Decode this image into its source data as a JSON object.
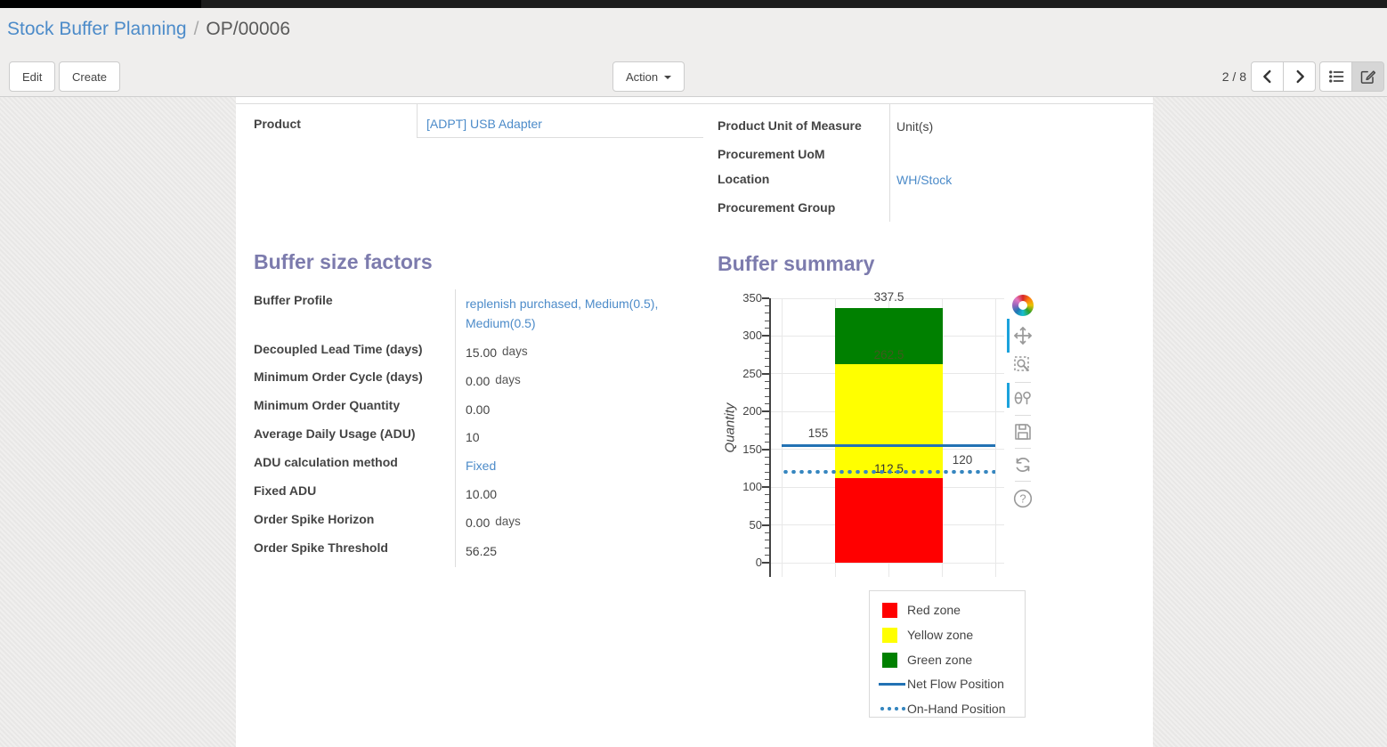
{
  "colors": {
    "accent_link": "#4c8bc9",
    "heading": "#7c7bad",
    "red_zone": "#ff0000",
    "yellow_zone": "#ffff00",
    "green_zone": "#008000",
    "net_flow_line": "#2272b4",
    "on_hand_line": "#3787c0"
  },
  "breadcrumb": {
    "parent": "Stock Buffer Planning",
    "separator": "/",
    "current": "OP/00006"
  },
  "control_panel": {
    "edit_label": "Edit",
    "create_label": "Create",
    "action_label": "Action",
    "pager_text": "2 / 8"
  },
  "form": {
    "product": {
      "label": "Product",
      "value": "[ADPT] USB Adapter"
    },
    "details": {
      "rows": [
        {
          "label": "Product Unit of Measure",
          "value": "Unit(s)"
        },
        {
          "label": "Procurement UoM",
          "value": ""
        },
        {
          "label": "Location",
          "value": "WH/Stock"
        },
        {
          "label": "Procurement Group",
          "value": ""
        }
      ]
    },
    "buffer_factors": {
      "title": "Buffer size factors",
      "rows": [
        {
          "label": "Buffer Profile",
          "value": "replenish purchased, Medium(0.5), Medium(0.5)",
          "suffix": ""
        },
        {
          "label": "Decoupled Lead Time (days)",
          "value": "15.00",
          "suffix": "days"
        },
        {
          "label": "Minimum Order Cycle (days)",
          "value": "0.00",
          "suffix": "days"
        },
        {
          "label": "Minimum Order Quantity",
          "value": "0.00",
          "suffix": ""
        },
        {
          "label": "Average Daily Usage (ADU)",
          "value": "10",
          "suffix": ""
        },
        {
          "label": "ADU calculation method",
          "value": "Fixed",
          "suffix": ""
        },
        {
          "label": "Fixed ADU",
          "value": "10.00",
          "suffix": ""
        },
        {
          "label": "Order Spike Horizon",
          "value": "0.00",
          "suffix": "days"
        },
        {
          "label": "Order Spike Threshold",
          "value": "56.25",
          "suffix": ""
        }
      ]
    },
    "buffer_summary": {
      "title": "Buffer summary"
    }
  },
  "chart_data": {
    "type": "bar",
    "stacked": true,
    "categories": [
      ""
    ],
    "series": [
      {
        "name": "Red zone",
        "color": "#ff0000",
        "values": [
          112.5
        ]
      },
      {
        "name": "Yellow zone",
        "color": "#ffff00",
        "values": [
          150
        ]
      },
      {
        "name": "Green zone",
        "color": "#008000",
        "values": [
          75
        ]
      }
    ],
    "zone_boundaries": [
      112.5,
      262.5,
      337.5
    ],
    "lines": [
      {
        "name": "Net Flow Position",
        "value": 155,
        "style": "solid",
        "color": "#2272b4",
        "label_side": "left"
      },
      {
        "name": "On-Hand Position",
        "value": 120,
        "style": "dotted",
        "color": "#3787c0",
        "label_side": "right"
      }
    ],
    "title": "",
    "xlabel": "",
    "ylabel": "Quantity",
    "ylim": [
      0,
      350
    ],
    "ytick_step": 50,
    "ytick_minor_step": 10,
    "grid": true,
    "legend_position": "bottom-right"
  },
  "modebar_icons": [
    "plotly-logo",
    "pan",
    "box-zoom",
    "compare-hover",
    "save",
    "reset-axes",
    "help"
  ]
}
